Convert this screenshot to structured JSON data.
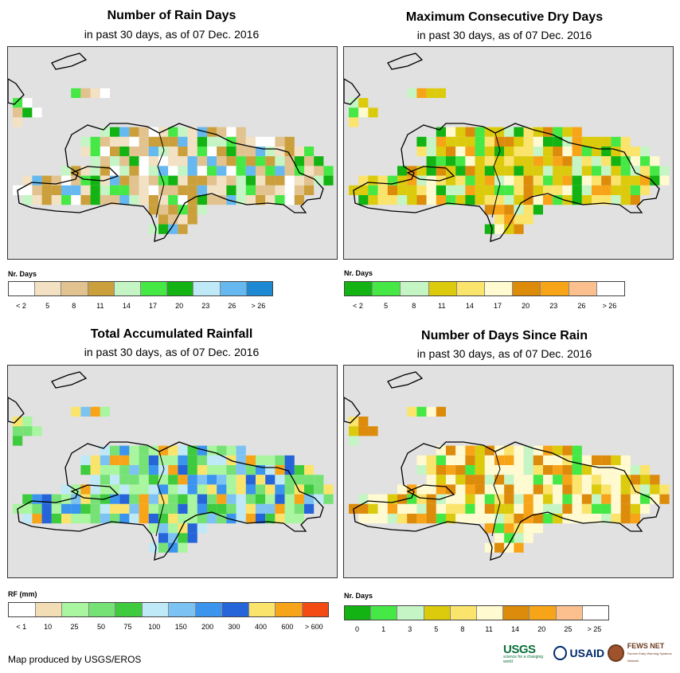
{
  "panels": [
    {
      "id": "rain-days",
      "title": "Number of Rain Days",
      "subtitle": "in past 30 days, as of 07 Dec. 2016",
      "legend_title": "Nr. Days",
      "legend_colors": [
        "#ffffff",
        "#f3e1c4",
        "#e2c38f",
        "#cba03c",
        "#c5f5c5",
        "#45e845",
        "#12b312",
        "#bfe9f7",
        "#65b8f0",
        "#1d89d3"
      ],
      "legend_ticks": [
        "< 2",
        "5",
        "8",
        "11",
        "14",
        "17",
        "20",
        "23",
        "26",
        "> 26"
      ],
      "land_colors": [
        "#f3e1c4",
        "#e2c38f",
        "#cba03c",
        "#f3e1c4",
        "#c5f5c5",
        "#e2c38f",
        "#ffffff",
        "#cba03c",
        "#65b8f0",
        "#12b312",
        "#45e845"
      ]
    },
    {
      "id": "max-dry-days",
      "title": "Maximum Consecutive Dry Days",
      "subtitle": "in past 30 days, as of 07 Dec. 2016",
      "legend_title": "Nr. Days",
      "legend_colors": [
        "#12b312",
        "#45e845",
        "#c5f5c5",
        "#dccb0c",
        "#fbe46c",
        "#fffad0",
        "#dd8b0a",
        "#f8a418",
        "#fbc08e",
        "#ffffff"
      ],
      "legend_ticks": [
        "< 2",
        "5",
        "8",
        "11",
        "14",
        "17",
        "20",
        "23",
        "26",
        "> 26"
      ],
      "land_colors": [
        "#dccb0c",
        "#fbe46c",
        "#dccb0c",
        "#fffad0",
        "#c5f5c5",
        "#dccb0c",
        "#45e845",
        "#dd8b0a",
        "#fbe46c",
        "#12b312",
        "#f8a418"
      ]
    },
    {
      "id": "total-rainfall",
      "title": "Total Accumulated Rainfall",
      "subtitle": "in past 30 days, as of 07 Dec. 2016",
      "legend_title": "RF (mm)",
      "legend_colors": [
        "#ffffff",
        "#f3ddb4",
        "#a9f5a0",
        "#76e276",
        "#3ecb3e",
        "#bfe9f7",
        "#7cc3f3",
        "#3b94ee",
        "#2564d9",
        "#fbe46c",
        "#f8a418",
        "#f44a14"
      ],
      "legend_ticks": [
        "< 1",
        "10",
        "25",
        "50",
        "75",
        "100",
        "150",
        "200",
        "300",
        "400",
        "600",
        "> 600"
      ],
      "land_colors": [
        "#76e276",
        "#a9f5a0",
        "#3ecb3e",
        "#bfe9f7",
        "#7cc3f3",
        "#a9f5a0",
        "#2564d9",
        "#3b94ee",
        "#76e276",
        "#fbe46c",
        "#f8a418"
      ]
    },
    {
      "id": "days-since-rain",
      "title": "Number of Days Since Rain",
      "subtitle": "in past 30 days, as of 07 Dec. 2016",
      "legend_title": "Nr. Days",
      "legend_colors": [
        "#12b312",
        "#45e845",
        "#c5f5c5",
        "#dccb0c",
        "#fbe46c",
        "#fffad0",
        "#dd8b0a",
        "#f8a418",
        "#fbc08e",
        "#ffffff"
      ],
      "legend_ticks": [
        "0",
        "1",
        "3",
        "5",
        "8",
        "11",
        "14",
        "20",
        "25",
        "> 25"
      ],
      "land_colors": [
        "#fffad0",
        "#fffad0",
        "#dd8b0a",
        "#fbe46c",
        "#fffad0",
        "#dccb0c",
        "#f8a418",
        "#c5f5c5",
        "#fffad0",
        "#45e845",
        "#dd8b0a"
      ]
    }
  ],
  "footer": "Map produced by USGS/EROS",
  "logos": {
    "usgs": "USGS",
    "usgs_tagline": "science for a changing world",
    "usaid": "USAID",
    "fews": "FEWS NET",
    "fews_tagline": "Famine Early Warning Systems Network"
  },
  "colors": {
    "ocean": "#e1e1e1",
    "border": "#000000"
  }
}
